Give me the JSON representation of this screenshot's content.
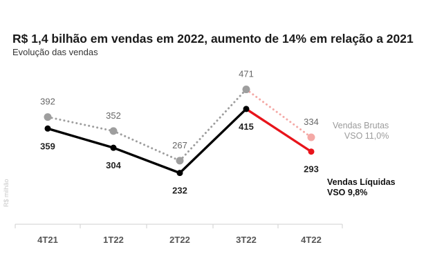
{
  "chart_data": {
    "type": "line",
    "title": "R$ 1,4 bilhão em vendas em 2022, aumento de 14% em relação a 2021",
    "subtitle": "Evolução das vendas",
    "ylabel": "R$ milhão",
    "categories": [
      "4T21",
      "1T22",
      "2T22",
      "3T22",
      "4T22"
    ],
    "ylim": [
      180,
      480
    ],
    "grid": false,
    "series": [
      {
        "name": "Vendas Brutas",
        "values": [
          392,
          352,
          267,
          471,
          334
        ],
        "style": "dotted",
        "color": "#9e9e9e",
        "highlight_color": "#f4a9a6",
        "side_label": [
          "Vendas Brutas",
          "VSO  11,0%"
        ]
      },
      {
        "name": "Vendas Líquidas",
        "values": [
          359,
          304,
          232,
          415,
          293
        ],
        "style": "solid",
        "color": "#000000",
        "highlight_color": "#e8141b",
        "side_label": [
          "Vendas Líquidas",
          "VSO    9,8%"
        ]
      }
    ],
    "highlight_last_segment": true
  }
}
